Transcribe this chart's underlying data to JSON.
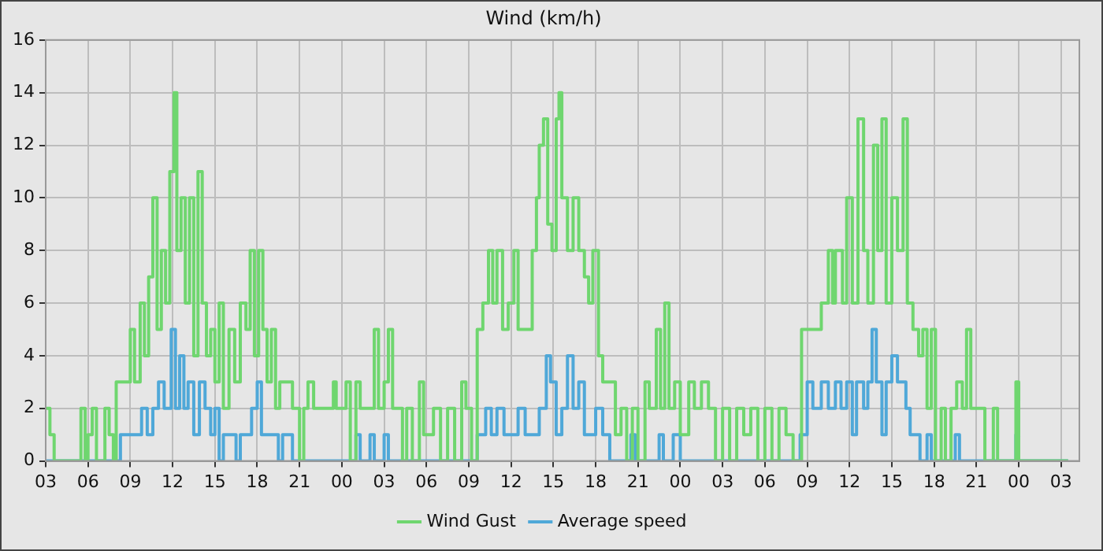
{
  "chart_data": {
    "type": "step",
    "title": "Wind (km/h)",
    "xlim": [
      3,
      76.3
    ],
    "xticks": [
      {
        "value": 3,
        "label": "03"
      },
      {
        "value": 6,
        "label": "06"
      },
      {
        "value": 9,
        "label": "09"
      },
      {
        "value": 12,
        "label": "12"
      },
      {
        "value": 15,
        "label": "15"
      },
      {
        "value": 18,
        "label": "18"
      },
      {
        "value": 21,
        "label": "21"
      },
      {
        "value": 24,
        "label": "00"
      },
      {
        "value": 27,
        "label": "03"
      },
      {
        "value": 30,
        "label": "06"
      },
      {
        "value": 33,
        "label": "09"
      },
      {
        "value": 36,
        "label": "12"
      },
      {
        "value": 39,
        "label": "15"
      },
      {
        "value": 42,
        "label": "18"
      },
      {
        "value": 45,
        "label": "21"
      },
      {
        "value": 48,
        "label": "00"
      },
      {
        "value": 51,
        "label": "03"
      },
      {
        "value": 54,
        "label": "06"
      },
      {
        "value": 57,
        "label": "09"
      },
      {
        "value": 60,
        "label": "12"
      },
      {
        "value": 63,
        "label": "15"
      },
      {
        "value": 66,
        "label": "18"
      },
      {
        "value": 69,
        "label": "21"
      },
      {
        "value": 72,
        "label": "00"
      },
      {
        "value": 75,
        "label": "03"
      }
    ],
    "ylim": [
      0,
      16
    ],
    "yticks": [
      0,
      2,
      4,
      6,
      8,
      10,
      12,
      14,
      16
    ],
    "grid": true,
    "legend": "bottom",
    "marker": "none",
    "line_style": "solid",
    "series": [
      {
        "name": "Wind Gust",
        "color": "#6fd66f",
        "x": [
          3,
          3.3,
          3.6,
          5.5,
          5.8,
          6,
          6.3,
          6.6,
          7.2,
          7.5,
          7.8,
          8,
          9,
          9.3,
          9.7,
          10,
          10.3,
          10.6,
          10.9,
          11.2,
          11.5,
          11.8,
          12.1,
          12.3,
          12.6,
          12.9,
          13.2,
          13.5,
          13.8,
          14.1,
          14.4,
          14.7,
          15,
          15.3,
          15.6,
          16,
          16.4,
          16.8,
          17.2,
          17.5,
          17.8,
          18.1,
          18.4,
          18.7,
          19,
          19.3,
          19.6,
          20.5,
          21,
          21.3,
          21.6,
          22,
          23.4,
          23.6,
          24.3,
          24.6,
          25,
          25.3,
          26.3,
          26.6,
          27,
          27.3,
          27.6,
          28.3,
          28.6,
          29,
          29.5,
          29.8,
          30.5,
          31,
          31.5,
          32,
          32.5,
          32.8,
          33.2,
          33.6,
          34,
          34.4,
          34.7,
          35,
          35.4,
          35.8,
          36.2,
          36.5,
          37,
          37.5,
          37.8,
          38,
          38.3,
          38.6,
          38.9,
          39.2,
          39.4,
          39.6,
          40,
          40.4,
          40.8,
          41.2,
          41.5,
          41.8,
          42.2,
          42.5,
          43,
          43.4,
          43.8,
          44.2,
          44.6,
          45,
          45.5,
          45.8,
          46.3,
          46.6,
          46.9,
          47.2,
          47.6,
          48,
          48.6,
          49,
          49.5,
          50,
          50.5,
          51,
          51.5,
          52,
          52.5,
          53,
          53.5,
          54,
          54.5,
          55,
          55.5,
          56,
          56.6,
          58,
          58.5,
          58.8,
          59,
          59.5,
          59.8,
          60.2,
          60.6,
          61,
          61.3,
          61.7,
          62,
          62.3,
          62.6,
          63,
          63.4,
          63.8,
          64.1,
          64.5,
          64.9,
          65.2,
          65.5,
          65.8,
          66.1,
          66.5,
          66.8,
          67.2,
          67.6,
          68,
          68.3,
          68.6,
          69.6,
          70.2,
          70.5,
          71.8,
          72,
          75.5
        ],
        "values": [
          2,
          1,
          0,
          2,
          0,
          1,
          2,
          0,
          2,
          1,
          0,
          3,
          5,
          3,
          6,
          4,
          7,
          10,
          5,
          8,
          6,
          11,
          14,
          8,
          10,
          6,
          10,
          4,
          11,
          6,
          4,
          5,
          3,
          6,
          2,
          5,
          3,
          6,
          5,
          8,
          4,
          8,
          5,
          3,
          5,
          2,
          3,
          2,
          0,
          2,
          3,
          2,
          3,
          2,
          3,
          0,
          3,
          2,
          5,
          2,
          3,
          5,
          2,
          0,
          2,
          0,
          3,
          1,
          2,
          0,
          2,
          0,
          3,
          2,
          0,
          5,
          6,
          8,
          6,
          8,
          5,
          6,
          8,
          5,
          5,
          8,
          10,
          12,
          13,
          9,
          8,
          13,
          14,
          10,
          8,
          10,
          8,
          7,
          6,
          8,
          4,
          3,
          3,
          1,
          2,
          0,
          2,
          0,
          3,
          2,
          5,
          2,
          6,
          2,
          3,
          1,
          3,
          2,
          3,
          2,
          0,
          2,
          0,
          2,
          1,
          2,
          0,
          2,
          0,
          2,
          1,
          0,
          5,
          6,
          8,
          6,
          8,
          6,
          10,
          6,
          13,
          8,
          6,
          12,
          8,
          13,
          6,
          10,
          8,
          13,
          6,
          5,
          4,
          5,
          2,
          5,
          0,
          2,
          0,
          2,
          3,
          2,
          5,
          2,
          0,
          2,
          0,
          3,
          0,
          0
        ]
      },
      {
        "name": "Average speed",
        "color": "#4fa8d8",
        "x": [
          3,
          8.3,
          9.3,
          9.8,
          10.2,
          10.6,
          11,
          11.4,
          11.9,
          12.2,
          12.5,
          12.8,
          13.1,
          13.5,
          13.9,
          14.3,
          14.7,
          15,
          15.3,
          15.6,
          16.5,
          16.8,
          17.6,
          18,
          18.3,
          19.5,
          19.8,
          20.5,
          25,
          25.3,
          26,
          26.3,
          27,
          27.3,
          33.6,
          34.2,
          34.6,
          35,
          35.5,
          36.5,
          37,
          38,
          38.5,
          38.8,
          39.2,
          39.6,
          40,
          40.4,
          40.8,
          41.2,
          42,
          42.5,
          43,
          44.5,
          44.8,
          46.5,
          46.8,
          47.5,
          48,
          56.5,
          57,
          57.4,
          58,
          58.5,
          59,
          59.4,
          59.8,
          60.2,
          60.5,
          61,
          61.3,
          61.6,
          61.9,
          62.3,
          62.6,
          63,
          63.4,
          64,
          64.3,
          65,
          65.5,
          65.8,
          67.5,
          67.8,
          71.8,
          72,
          75.5
        ],
        "values": [
          0,
          1,
          1,
          2,
          1,
          2,
          3,
          2,
          5,
          2,
          4,
          2,
          3,
          1,
          3,
          2,
          1,
          2,
          0,
          1,
          0,
          1,
          2,
          3,
          1,
          0,
          1,
          0,
          1,
          0,
          1,
          0,
          1,
          0,
          1,
          2,
          1,
          2,
          1,
          2,
          1,
          2,
          4,
          3,
          1,
          2,
          4,
          2,
          3,
          1,
          2,
          1,
          0,
          1,
          0,
          1,
          0,
          1,
          0,
          1,
          3,
          2,
          3,
          2,
          3,
          2,
          3,
          1,
          3,
          2,
          3,
          5,
          3,
          1,
          3,
          4,
          3,
          2,
          1,
          0,
          1,
          0,
          1,
          0,
          1,
          0,
          0
        ]
      }
    ]
  }
}
